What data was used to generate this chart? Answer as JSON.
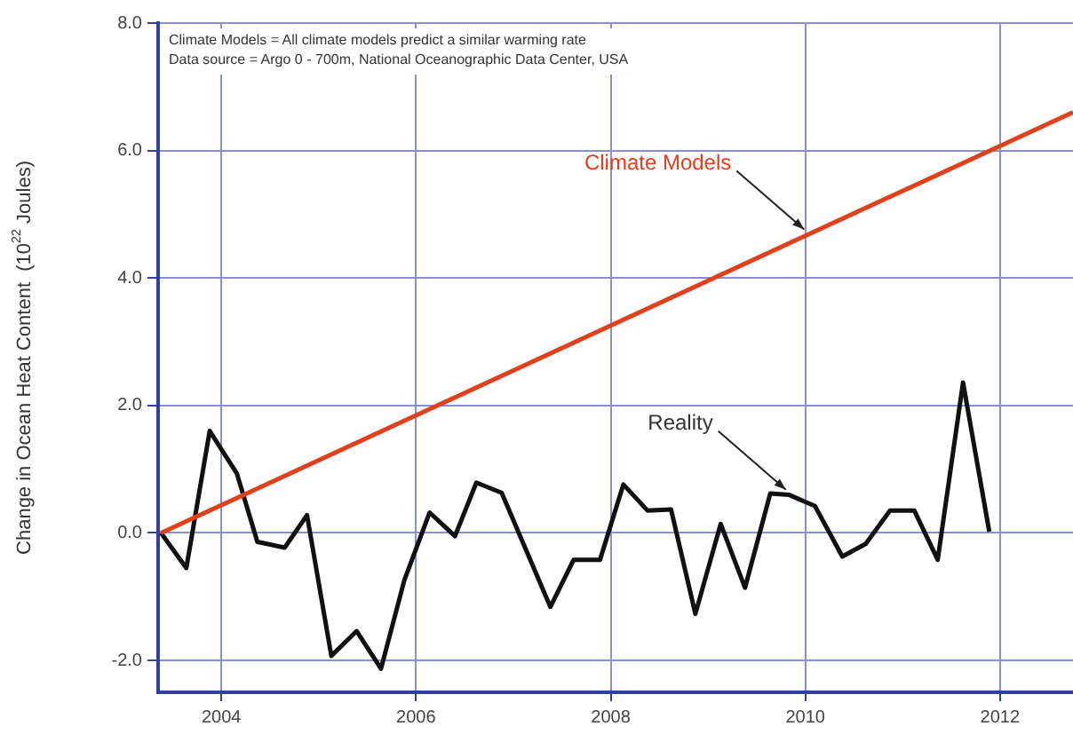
{
  "chart_data": {
    "type": "line",
    "ylabel": "Change in Ocean Heat Content  (10$^{22}$ Joules)",
    "xlim": [
      2003.35,
      2012.75
    ],
    "xticks": [
      2004,
      2006,
      2008,
      2010,
      2012
    ],
    "ylim": [
      -2.5,
      8
    ],
    "yticks": [
      {
        "value": -2,
        "label": "-2.0"
      },
      {
        "value": 0,
        "label": "0.0"
      },
      {
        "value": 2,
        "label": "2.0"
      },
      {
        "value": 4,
        "label": "4.0"
      },
      {
        "value": 6,
        "label": "6.0"
      },
      {
        "value": 8,
        "label": "8.0"
      }
    ],
    "grid": true,
    "legend": false,
    "marker": "none",
    "line_style": "solid",
    "series": [
      {
        "name": "Climate Models",
        "color": "#e0401c",
        "x": [
          2003.38,
          2012.75
        ],
        "values": [
          0.0,
          6.6
        ]
      },
      {
        "name": "Reality",
        "color": "#111111",
        "x": [
          2003.38,
          2003.64,
          2003.88,
          2004.16,
          2004.37,
          2004.65,
          2004.88,
          2005.13,
          2005.39,
          2005.64,
          2005.88,
          2006.14,
          2006.4,
          2006.62,
          2006.88,
          2007.38,
          2007.62,
          2007.89,
          2008.13,
          2008.38,
          2008.62,
          2008.87,
          2009.13,
          2009.38,
          2009.64,
          2009.83,
          2010.1,
          2010.38,
          2010.62,
          2010.87,
          2011.12,
          2011.36,
          2011.62,
          2011.89
        ],
        "values": [
          0.0,
          -0.55,
          1.6,
          0.93,
          -0.14,
          -0.23,
          0.28,
          -1.93,
          -1.54,
          -2.13,
          -0.74,
          0.32,
          -0.05,
          0.79,
          0.63,
          -1.16,
          -0.42,
          -0.42,
          0.76,
          0.35,
          0.37,
          -1.27,
          0.14,
          -0.86,
          0.62,
          0.6,
          0.42,
          -0.37,
          -0.17,
          0.35,
          0.35,
          -0.42,
          2.36,
          0.02
        ]
      }
    ],
    "annotations": [
      "Climate Models = All climate models predict a similar warming rate",
      "Data source = Argo 0 - 700m, National Oceanographic Data Center, USA"
    ]
  }
}
